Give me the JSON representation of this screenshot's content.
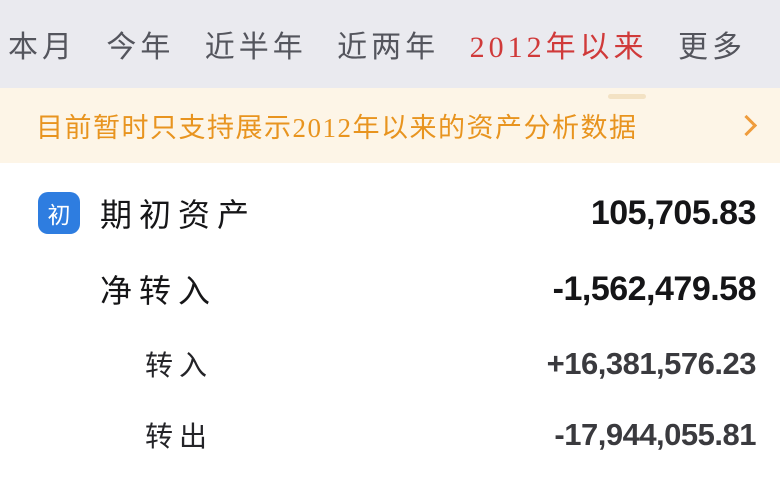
{
  "period_tabs": {
    "items": [
      {
        "label": "本月"
      },
      {
        "label": "今年"
      },
      {
        "label": "近半年"
      },
      {
        "label": "近两年"
      },
      {
        "label": "2012年以来"
      },
      {
        "label": "更多"
      }
    ],
    "active_index": 4
  },
  "notice_banner": {
    "text": "目前暂时只支持展示2012年以来的资产分析数据",
    "chevron_icon": "chevron-right"
  },
  "asset_rows": [
    {
      "badge": "初",
      "label": "期初资产",
      "value": "105,705.83"
    },
    {
      "label": "净转入",
      "value": "-1,562,479.58"
    },
    {
      "label": "转入",
      "value": "+16,381,576.23"
    },
    {
      "label": "转出",
      "value": "-17,944,055.81"
    }
  ],
  "colors": {
    "tab_active": "#d03a3a",
    "tab_inactive": "#54555d",
    "tabbar_background": "#eaeaef",
    "banner_background": "#fdf5e7",
    "banner_text": "#e8941f",
    "badge_background": "#2e7de0",
    "value_primary": "#151517",
    "value_secondary": "#3a3a3e"
  }
}
